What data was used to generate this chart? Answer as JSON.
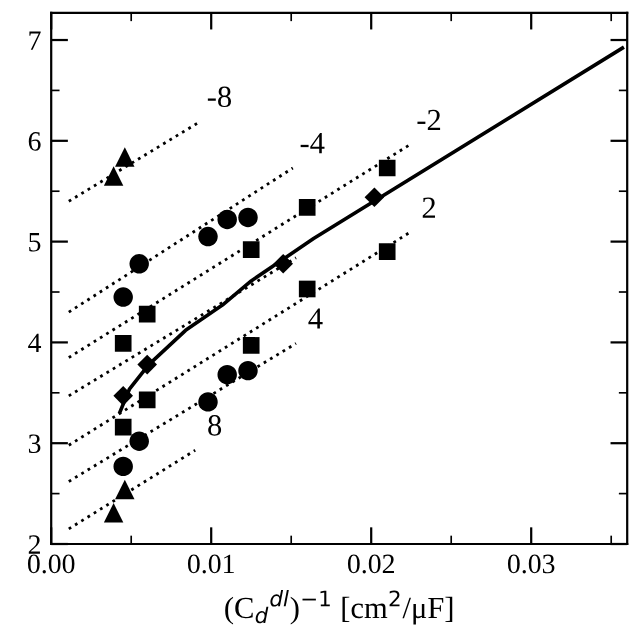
{
  "chart_data": {
    "type": "scatter",
    "xlabel": "(C$_{d}$$^{dl}$)$^{−1}$ [cm$^{2}$/μF]",
    "xlim": [
      0,
      0.036
    ],
    "xticks": [
      {
        "value": 0,
        "label": "0.00"
      },
      0.01,
      0.02,
      0.03
    ],
    "ylim": [
      2,
      7.27
    ],
    "yticks": [
      2,
      3,
      4,
      5,
      6,
      7
    ],
    "grid": false,
    "legend": false,
    "series": [
      {
        "marker": "triangle",
        "color": "#000000",
        "x": [
          0.0039,
          0.0046
        ],
        "values": [
          5.65,
          5.84
        ]
      },
      {
        "marker": "circle",
        "color": "#000000",
        "x": [
          0.0045,
          0.0055,
          0.0098,
          0.011,
          0.0123
        ],
        "values": [
          4.45,
          4.78,
          5.05,
          5.22,
          5.24
        ]
      },
      {
        "marker": "square",
        "color": "#000000",
        "x": [
          0.0045,
          0.006,
          0.0125,
          0.016,
          0.021
        ],
        "values": [
          3.99,
          4.28,
          4.92,
          5.34,
          5.73
        ]
      },
      {
        "marker": "diamond",
        "color": "#000000",
        "x": [
          0.0045,
          0.006,
          0.0145,
          0.0202
        ],
        "values": [
          3.47,
          3.78,
          4.78,
          5.44
        ]
      },
      {
        "marker": "square",
        "color": "#000000",
        "x": [
          0.0045,
          0.006,
          0.0125,
          0.016,
          0.021
        ],
        "values": [
          3.16,
          3.43,
          3.97,
          4.53,
          4.9
        ]
      },
      {
        "marker": "circle",
        "color": "#000000",
        "x": [
          0.0045,
          0.0055,
          0.0098,
          0.011,
          0.0123
        ],
        "values": [
          2.77,
          3.02,
          3.41,
          3.68,
          3.72
        ]
      },
      {
        "marker": "triangle",
        "color": "#000000",
        "x": [
          0.0039,
          0.0046
        ],
        "values": [
          2.31,
          2.54
        ]
      },
      {
        "type": "line",
        "name": "-8",
        "line_style": "dotted",
        "color": "#000000",
        "x": [
          0.0011,
          0.0093
        ],
        "values": [
          5.4,
          6.19
        ]
      },
      {
        "type": "line",
        "name": "-4",
        "line_style": "dotted",
        "color": "#000000",
        "x": [
          0.0011,
          0.0151
        ],
        "values": [
          4.3,
          5.73
        ]
      },
      {
        "type": "line",
        "name": "-2",
        "line_style": "dotted",
        "color": "#000000",
        "x": [
          0.0011,
          0.0224
        ],
        "values": [
          3.85,
          5.96
        ]
      },
      {
        "type": "line",
        "line_style": "dotted",
        "color": "#000000",
        "x": [
          0.0011,
          0.0153
        ],
        "values": [
          3.47,
          4.84
        ]
      },
      {
        "type": "line",
        "name": "2",
        "line_style": "dotted",
        "color": "#000000",
        "x": [
          0.0011,
          0.0224
        ],
        "values": [
          2.98,
          5.09
        ]
      },
      {
        "type": "line",
        "name": "4",
        "line_style": "dotted",
        "color": "#000000",
        "x": [
          0.0011,
          0.0153
        ],
        "values": [
          2.62,
          3.99
        ]
      },
      {
        "type": "line",
        "name": "8",
        "line_style": "dotted",
        "color": "#000000",
        "x": [
          0.0011,
          0.009
        ],
        "values": [
          2.15,
          2.93
        ]
      },
      {
        "type": "line",
        "line_style": "solid",
        "color": "#000000",
        "x": [
          0.0043,
          0.0049,
          0.0061,
          0.0084,
          0.0107,
          0.0125,
          0.0164,
          0.0357
        ],
        "values": [
          3.31,
          3.54,
          3.78,
          4.12,
          4.37,
          4.61,
          5.03,
          6.92
        ]
      }
    ]
  }
}
